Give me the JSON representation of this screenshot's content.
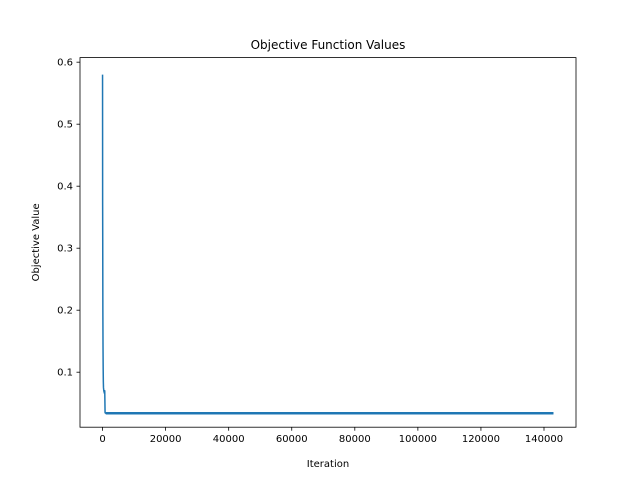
{
  "chart_data": {
    "type": "line",
    "title": "Objective Function Values",
    "xlabel": "Iteration",
    "ylabel": "Objective Value",
    "xlim": [
      -7150,
      150150
    ],
    "ylim": [
      0.0113,
      0.6074
    ],
    "grid": false,
    "xticks": [
      0,
      20000,
      40000,
      60000,
      80000,
      100000,
      120000,
      140000
    ],
    "xtick_labels": [
      "0",
      "20000",
      "40000",
      "60000",
      "80000",
      "100000",
      "120000",
      "140000"
    ],
    "yticks": [
      0.1,
      0.2,
      0.3,
      0.4,
      0.5,
      0.6
    ],
    "ytick_labels": [
      "0.1",
      "0.2",
      "0.3",
      "0.4",
      "0.5",
      "0.6"
    ],
    "series": [
      {
        "color": "#1f77b4",
        "x": [
          0,
          30,
          60,
          100,
          150,
          200,
          250,
          300,
          400,
          500,
          600,
          700,
          800,
          900,
          1000,
          143000
        ],
        "y": [
          0.58,
          0.37,
          0.315,
          0.2,
          0.14,
          0.105,
          0.085,
          0.075,
          0.07,
          0.068,
          0.066,
          0.07,
          0.035,
          0.034,
          0.034,
          0.034
        ],
        "band_x": [
          1000,
          143000
        ],
        "band_y": [
          0.0318,
          0.0358
        ]
      }
    ]
  }
}
